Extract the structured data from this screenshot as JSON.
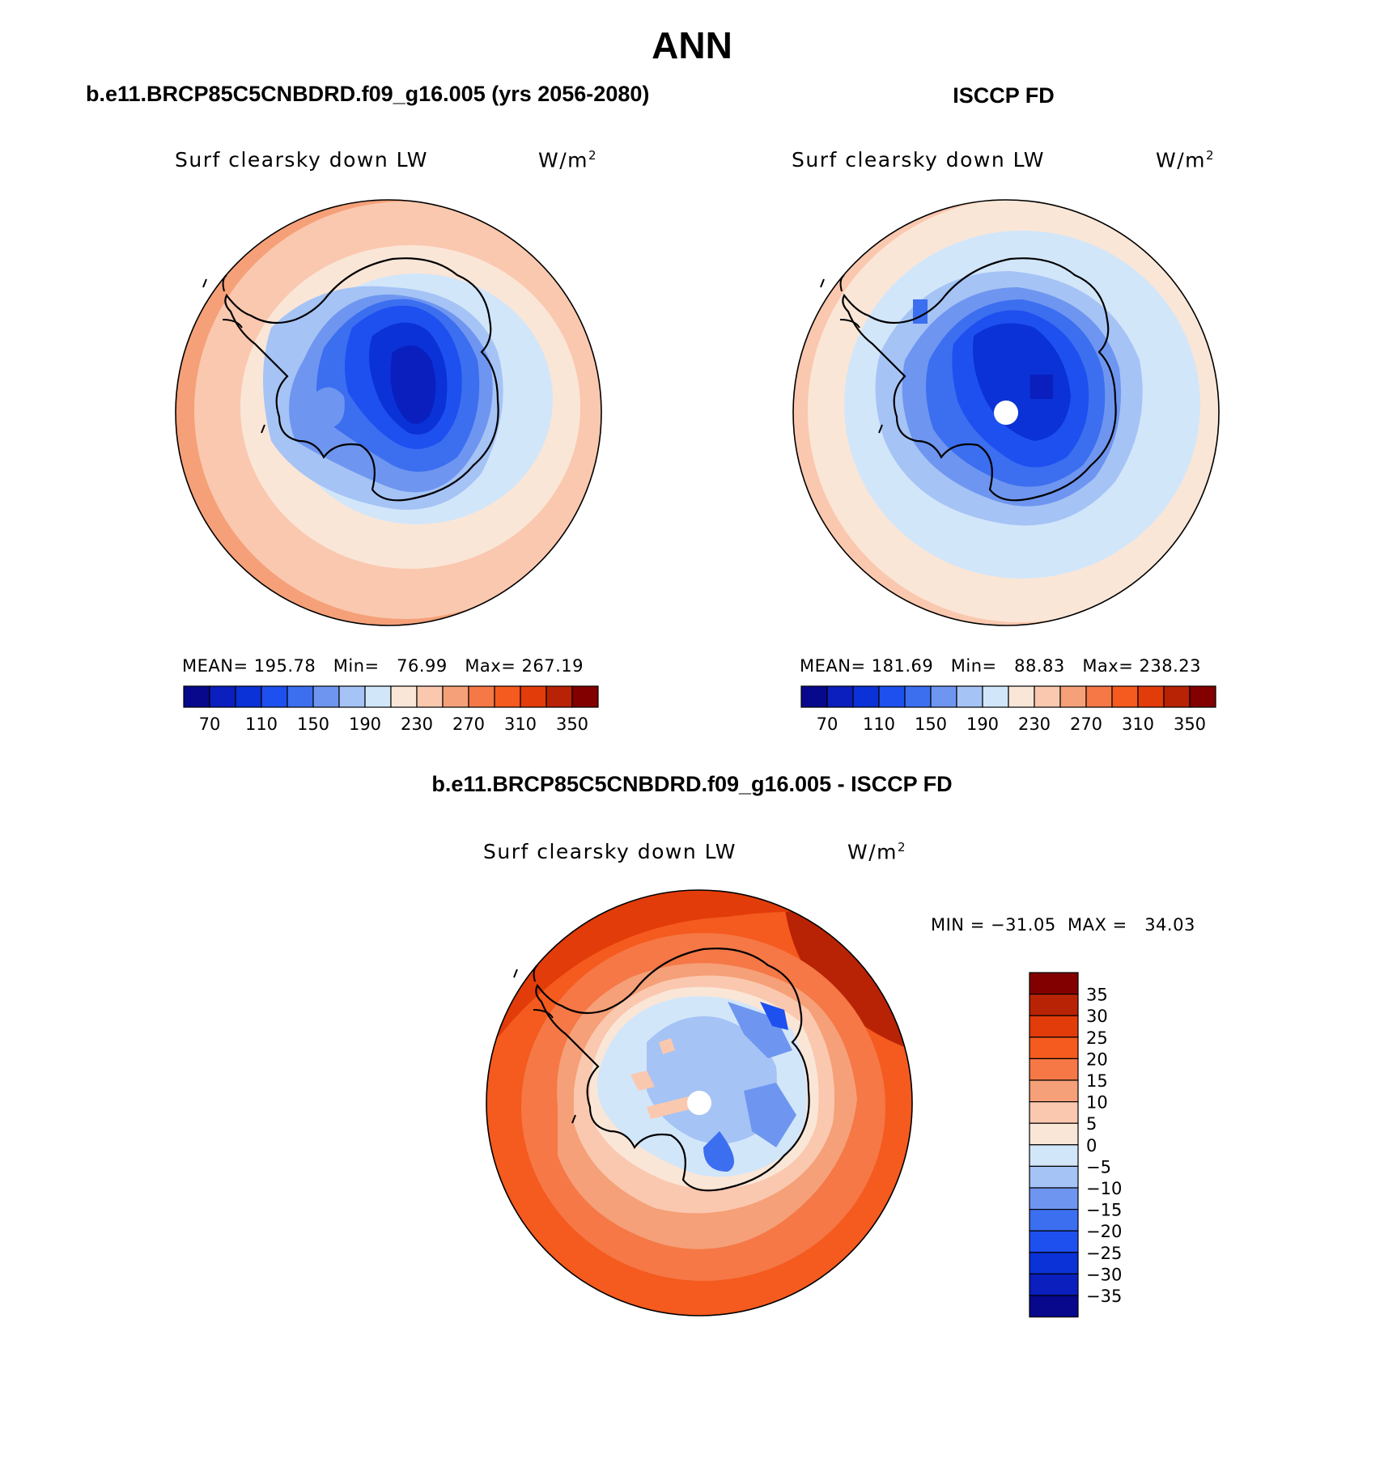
{
  "page_title": "ANN",
  "panels": {
    "model": {
      "case_title": "b.e11.BRCP85C5CNBDRD.f09_g16.005 (yrs 2056-2080)",
      "variable": "Surf clearsky down LW",
      "units": "W/m",
      "units_sup": "2",
      "stats": {
        "mean_label": "MEAN=",
        "mean": "195.78",
        "min_label": "Min=",
        "min": "76.99",
        "max_label": "Max=",
        "max": "267.19"
      }
    },
    "obs": {
      "case_title": "ISCCP FD",
      "variable": "Surf clearsky down LW",
      "units": "W/m",
      "units_sup": "2",
      "stats": {
        "mean_label": "MEAN=",
        "mean": "181.69",
        "min_label": "Min=",
        "min": "88.83",
        "max_label": "Max=",
        "max": "238.23"
      }
    },
    "diff": {
      "case_title": "b.e11.BRCP85C5CNBDRD.f09_g16.005 - ISCCP FD",
      "variable": "Surf clearsky down LW",
      "units": "W/m",
      "units_sup": "2",
      "minmax": "MIN = −31.05  MAX =   34.03"
    }
  },
  "colorbar_abs": {
    "colors": [
      "#08088c",
      "#0a1fbe",
      "#0a32d6",
      "#1e50f0",
      "#3c6ef0",
      "#6e96f0",
      "#a5c3f5",
      "#d2e6fa",
      "#fae6d7",
      "#fac8af",
      "#f5a078",
      "#f57846",
      "#f55a1e",
      "#e13c0a",
      "#b92305",
      "#820000"
    ],
    "labels": [
      "70",
      "110",
      "150",
      "190",
      "230",
      "270",
      "310",
      "350"
    ]
  },
  "colorbar_diff": {
    "colors": [
      "#820000",
      "#b92305",
      "#e13c0a",
      "#f55a1e",
      "#f57846",
      "#f5a078",
      "#fac8af",
      "#fae6d7",
      "#d2e6fa",
      "#a5c3f5",
      "#6e96f0",
      "#3c6ef0",
      "#1e50f0",
      "#0a32d6",
      "#0a1fbe",
      "#08088c"
    ],
    "labels": [
      "35",
      "30",
      "25",
      "20",
      "15",
      "10",
      "5",
      "0",
      "−5",
      "−10",
      "−15",
      "−20",
      "−25",
      "−30",
      "−35"
    ]
  }
}
